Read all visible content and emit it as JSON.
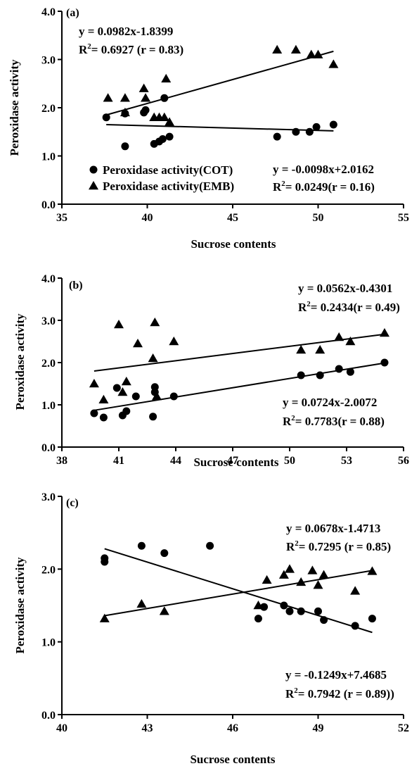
{
  "chart_data": [
    {
      "type": "scatter",
      "panel_label": "(a)",
      "xlabel": "Sucrose contents",
      "ylabel": "Peroxidase activity",
      "xlim": [
        35,
        55
      ],
      "ylim": [
        0,
        4
      ],
      "xticks": [
        "35",
        "40",
        "45",
        "50",
        "55"
      ],
      "yticks": [
        "0.0",
        "1.0",
        "2.0",
        "3.0",
        "4.0"
      ],
      "legend": [
        {
          "marker": "circle",
          "label": "Peroxidase activity(COT)"
        },
        {
          "marker": "triangle",
          "label": "Peroxidase activity(EMB)"
        }
      ],
      "series": [
        {
          "marker": "circle",
          "x": [
            37.6,
            38.7,
            38.7,
            39.8,
            39.9,
            40.4,
            40.7,
            40.9,
            41.0,
            41.3,
            47.6,
            48.7,
            49.5,
            49.9,
            50.9
          ],
          "y": [
            1.8,
            1.2,
            1.88,
            1.9,
            1.95,
            1.25,
            1.3,
            1.35,
            2.2,
            1.4,
            1.4,
            1.5,
            1.5,
            1.6,
            1.65
          ]
        },
        {
          "marker": "triangle",
          "x": [
            37.7,
            38.7,
            38.7,
            39.8,
            39.9,
            40.4,
            40.7,
            41.0,
            41.1,
            41.3,
            47.6,
            48.7,
            49.6,
            50.0,
            50.9
          ],
          "y": [
            2.2,
            2.2,
            1.9,
            2.4,
            2.2,
            1.8,
            1.8,
            1.8,
            2.6,
            1.7,
            3.2,
            3.2,
            3.1,
            3.1,
            2.9
          ]
        }
      ],
      "fits": [
        {
          "equation": "y = 0.0982x-1.8399",
          "r2_prefix": "R",
          "r2_value": "= 0.6927 (r = 0.83)",
          "x_range": [
            37.6,
            50.9
          ],
          "y_range": [
            1.85,
            3.17
          ]
        },
        {
          "equation": "y = -0.0098x+2.0162",
          "r2_prefix": "R",
          "r2_value": "= 0.0249(r = 0.16)",
          "x_range": [
            37.6,
            50.9
          ],
          "y_range": [
            1.65,
            1.52
          ]
        }
      ]
    },
    {
      "type": "scatter",
      "panel_label": "(b)",
      "xlabel": "Sucrose contents",
      "ylabel": "Peroxidase activity",
      "xlim": [
        38,
        56
      ],
      "ylim": [
        0,
        4
      ],
      "xticks": [
        "38",
        "41",
        "44",
        "47",
        "50",
        "53",
        "56"
      ],
      "yticks": [
        "0.0",
        "1.0",
        "2.0",
        "3.0",
        "4.0"
      ],
      "series": [
        {
          "marker": "circle",
          "x": [
            39.7,
            40.2,
            40.9,
            41.2,
            41.4,
            41.9,
            42.8,
            42.9,
            42.9,
            43.9,
            50.6,
            51.6,
            52.6,
            53.2,
            55.0
          ],
          "y": [
            0.8,
            0.7,
            1.4,
            0.75,
            0.85,
            1.2,
            0.72,
            1.3,
            1.42,
            1.2,
            1.7,
            1.7,
            1.85,
            1.78,
            2.0
          ]
        },
        {
          "marker": "triangle",
          "x": [
            39.7,
            40.2,
            41.0,
            41.2,
            41.4,
            42.0,
            42.8,
            42.9,
            43.0,
            43.9,
            50.6,
            51.6,
            52.6,
            53.2,
            55.0
          ],
          "y": [
            1.5,
            1.12,
            2.9,
            1.3,
            1.55,
            2.45,
            2.1,
            2.95,
            1.2,
            2.5,
            2.3,
            2.3,
            2.6,
            2.5,
            2.7
          ]
        }
      ],
      "fits": [
        {
          "equation": "y = 0.0562x-0.4301",
          "r2_prefix": "R",
          "r2_value": "= 0.2434(r = 0.49)",
          "x_range": [
            39.7,
            55.0
          ],
          "y_range": [
            1.8,
            2.67
          ]
        },
        {
          "equation": "y = 0.0724x-2.0072",
          "r2_prefix": "R",
          "r2_value": "= 0.7783(r = 0.88)",
          "x_range": [
            39.7,
            55.0
          ],
          "y_range": [
            0.87,
            1.99
          ]
        }
      ]
    },
    {
      "type": "scatter",
      "panel_label": "(c)",
      "xlabel": "Sucrose contents",
      "ylabel": "Peroxidase activity",
      "xlim": [
        40,
        52
      ],
      "ylim": [
        0,
        3
      ],
      "xticks": [
        "40",
        "43",
        "46",
        "49",
        "52"
      ],
      "yticks": [
        "0.0",
        "1.0",
        "2.0",
        "3.0"
      ],
      "series": [
        {
          "marker": "circle",
          "x": [
            41.5,
            41.5,
            42.8,
            43.6,
            45.2,
            46.9,
            47.1,
            47.8,
            48.0,
            48.4,
            49.0,
            49.2,
            50.3,
            50.9
          ],
          "y": [
            2.1,
            2.15,
            2.32,
            2.22,
            2.32,
            1.32,
            1.48,
            1.5,
            1.42,
            1.42,
            1.42,
            1.3,
            1.22,
            1.32
          ]
        },
        {
          "marker": "triangle",
          "x": [
            41.5,
            42.8,
            43.6,
            46.9,
            47.2,
            47.8,
            48.0,
            48.4,
            48.8,
            49.0,
            49.2,
            50.3,
            50.9
          ],
          "y": [
            1.32,
            1.52,
            1.42,
            1.5,
            1.85,
            1.92,
            2.0,
            1.82,
            1.98,
            1.78,
            1.92,
            1.7,
            1.97
          ]
        }
      ],
      "fits": [
        {
          "equation": "y = 0.0678x-1.4713",
          "r2_prefix": "R",
          "r2_value": "= 0.7295 (r = 0.85)",
          "x_range": [
            41.5,
            50.9
          ],
          "y_range": [
            1.36,
            1.98
          ]
        },
        {
          "equation": "y = -0.1249x+7.4685",
          "r2_prefix": "R",
          "r2_value": "= 0.7942 (r = 0.89))",
          "x_range": [
            41.5,
            50.9
          ],
          "y_range": [
            2.28,
            1.13
          ]
        }
      ]
    }
  ]
}
